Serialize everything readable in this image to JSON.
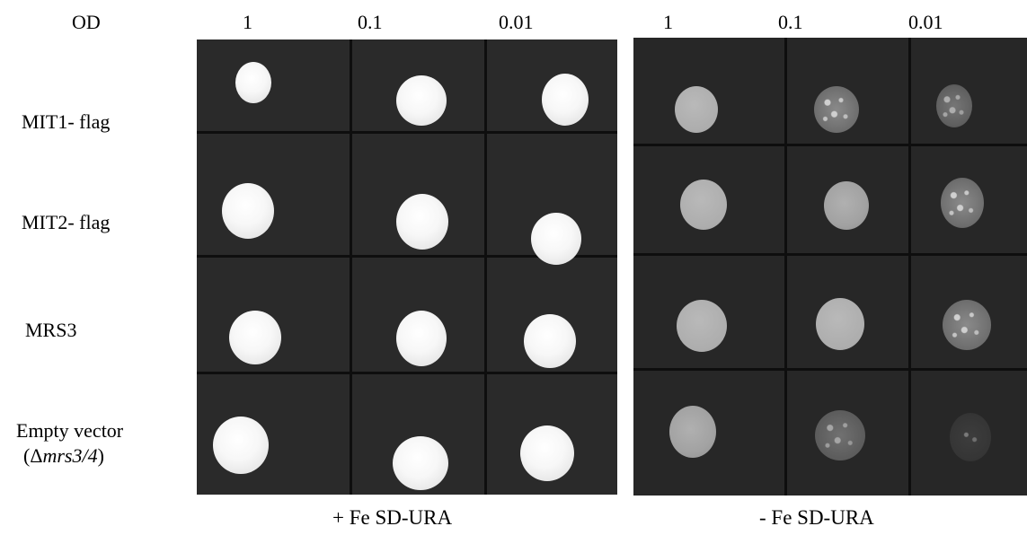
{
  "header": {
    "od_label": "OD",
    "left_dilutions": [
      "1",
      "0.1",
      "0.01"
    ],
    "right_dilutions": [
      "1",
      "0.1",
      "0.01"
    ]
  },
  "rows": [
    {
      "label": "MIT1- flag"
    },
    {
      "label": "MIT2- flag"
    },
    {
      "label": "MRS3"
    },
    {
      "label": "Empty vector",
      "sublabel_prefix": "(Δ",
      "sublabel_italic": "mrs3/4",
      "sublabel_suffix": ")"
    }
  ],
  "captions": {
    "left": "+ Fe SD-URA",
    "right": "- Fe SD-URA"
  },
  "colors": {
    "plate_background": "#2b2b2b",
    "grid_lines": "#0e0e0e",
    "colony_plus_fe": "#f5f5f5",
    "colony_minus_fe": "#adadad"
  }
}
